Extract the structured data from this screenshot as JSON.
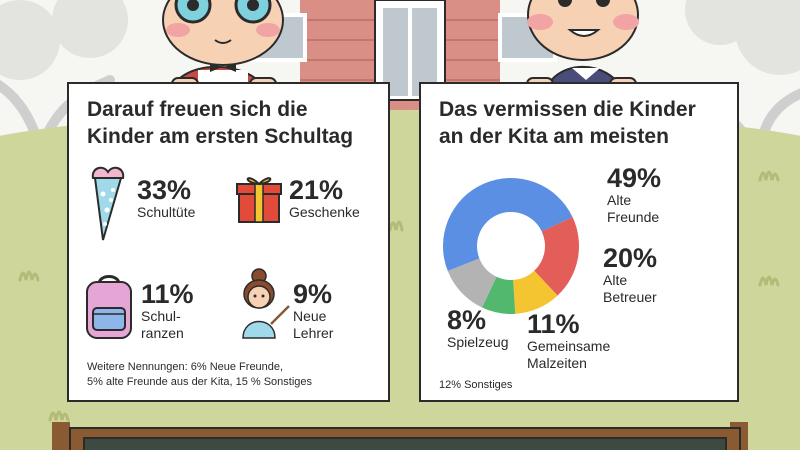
{
  "left_card": {
    "title_line1": "Darauf freuen sich die",
    "title_line2": "Kinder am ersten Schultag",
    "items": [
      {
        "percent": "33%",
        "label_lines": [
          "Schultüte"
        ],
        "icon": "school-cone-icon"
      },
      {
        "percent": "21%",
        "label_lines": [
          "Geschenke"
        ],
        "icon": "gift-icon"
      },
      {
        "percent": "11%",
        "label_lines": [
          "Schul-",
          "ranzen"
        ],
        "icon": "backpack-icon"
      },
      {
        "percent": "9%",
        "label_lines": [
          "Neue",
          "Lehrer"
        ],
        "icon": "teacher-icon"
      }
    ],
    "footnote_line1": "Weitere Nennungen: 6% Neue Freunde,",
    "footnote_line2": "5% alte Freunde aus der Kita, 15 % Sonstiges"
  },
  "right_card": {
    "title_line1": "Das vermissen die Kinder",
    "title_line2": "an der Kita am meisten",
    "footnote": "12% Sonstiges"
  },
  "chart_data": {
    "type": "pie",
    "donut": true,
    "title": "Das vermissen die Kinder an der Kita am meisten",
    "slices": [
      {
        "label": "Alte Freunde",
        "value": 49,
        "color": "#5b8fe3",
        "percent_label": "49%",
        "label_lines": [
          "Alte",
          "Freunde"
        ]
      },
      {
        "label": "Alte Betreuer",
        "value": 20,
        "color": "#e35d59",
        "percent_label": "20%",
        "label_lines": [
          "Alte",
          "Betreuer"
        ]
      },
      {
        "label": "Gemeinsame Malzeiten",
        "value": 11,
        "color": "#f5c431",
        "percent_label": "11%",
        "label_lines": [
          "Gemeinsame",
          "Malzeiten"
        ]
      },
      {
        "label": "Spielzeug",
        "value": 8,
        "color": "#52b86d",
        "percent_label": "8%",
        "label_lines": [
          "Spielzeug"
        ]
      },
      {
        "label": "Sonstiges",
        "value": 12,
        "color": "#b3b3b3"
      }
    ]
  },
  "colors": {
    "sky": "#f6f6f3",
    "hill": "#cfd69b",
    "hill_dark": "#b9c27f",
    "card_border": "#2b2b2b",
    "chalkboard": "#3d4a3f",
    "chalkboard_frame": "#8a5a32"
  }
}
